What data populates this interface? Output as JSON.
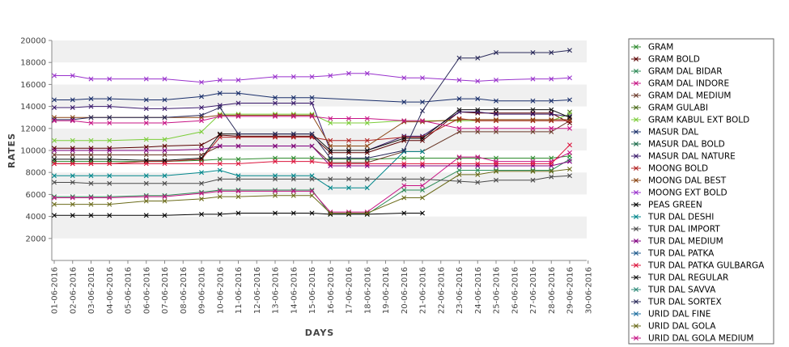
{
  "chart_data": {
    "type": "line",
    "xlabel": "DAYS",
    "ylabel": "RATES",
    "ylim": [
      0,
      20000
    ],
    "yticks": [
      2000,
      4000,
      6000,
      8000,
      10000,
      12000,
      14000,
      16000,
      18000,
      20000
    ],
    "grid": "horizontal bands",
    "legend_position": "right",
    "categories": [
      "01-06-2016",
      "02-06-2016",
      "03-06-2016",
      "04-06-2016",
      "05-06-2016",
      "06-06-2016",
      "07-06-2016",
      "08-06-2016",
      "09-06-2016",
      "10-06-2016",
      "11-06-2016",
      "12-06-2016",
      "13-06-2016",
      "14-06-2016",
      "15-06-2016",
      "16-06-2016",
      "17-06-2016",
      "18-06-2016",
      "19-06-2016",
      "20-06-2016",
      "21-06-2016",
      "22-06-2016",
      "23-06-2016",
      "24-06-2016",
      "25-06-2016",
      "26-06-2016",
      "27-06-2016",
      "28-06-2016",
      "29-06-2016",
      "30-06-2016"
    ],
    "series": [
      {
        "name": "GRAM",
        "color": "#2e8b2e",
        "values": [
          9000,
          9000,
          9000,
          9000,
          null,
          9000,
          9000,
          null,
          9100,
          9200,
          9200,
          null,
          9300,
          9300,
          9300,
          9200,
          9200,
          9200,
          null,
          9300,
          9300,
          null,
          9300,
          9300,
          9300,
          null,
          9300,
          9300,
          9500,
          null
        ]
      },
      {
        "name": "GRAM BOLD",
        "color": "#5a0000",
        "values": [
          10200,
          10200,
          10200,
          10200,
          null,
          10300,
          10400,
          null,
          10500,
          11400,
          11300,
          null,
          11300,
          11300,
          11300,
          9800,
          9800,
          9800,
          null,
          10900,
          10900,
          null,
          13500,
          13400,
          13400,
          null,
          13400,
          13400,
          12500,
          null
        ]
      },
      {
        "name": "GRAM DAL BIDAR",
        "color": "#2e8b57",
        "values": [
          5800,
          5800,
          5800,
          5800,
          null,
          5900,
          5900,
          null,
          6200,
          6400,
          6400,
          null,
          6400,
          6400,
          6400,
          4200,
          4200,
          4200,
          null,
          6400,
          6400,
          null,
          8200,
          8200,
          8200,
          null,
          8200,
          8200,
          9200,
          null
        ]
      },
      {
        "name": "GRAM DAL INDORE",
        "color": "#c71585",
        "values": [
          5700,
          5700,
          5700,
          5700,
          null,
          5800,
          5800,
          null,
          6100,
          6300,
          6300,
          null,
          6300,
          6300,
          6300,
          4400,
          4400,
          4400,
          null,
          6800,
          6800,
          null,
          9400,
          9400,
          9000,
          null,
          9000,
          9000,
          9800,
          null
        ]
      },
      {
        "name": "GRAM DAL MEDIUM",
        "color": "#6b3a2a",
        "values": [
          9600,
          9600,
          9600,
          9600,
          null,
          9600,
          9600,
          null,
          9600,
          10400,
          10400,
          null,
          10400,
          10400,
          10400,
          8900,
          8900,
          8900,
          null,
          9900,
          9900,
          null,
          11700,
          11700,
          11700,
          null,
          11700,
          11700,
          12700,
          null
        ]
      },
      {
        "name": "GRAM GULABI",
        "color": "#4b6b1a",
        "values": [
          null,
          null,
          null,
          null,
          null,
          null,
          null,
          null,
          null,
          null,
          null,
          null,
          null,
          null,
          null,
          null,
          null,
          null,
          null,
          null,
          null,
          null,
          null,
          null,
          null,
          null,
          null,
          null,
          13500,
          null
        ]
      },
      {
        "name": "GRAM KABUL EXT BOLD",
        "color": "#7ccd3a",
        "values": [
          10900,
          10900,
          10900,
          10900,
          null,
          11000,
          11000,
          null,
          11700,
          13300,
          13300,
          null,
          13300,
          13300,
          13300,
          12500,
          12500,
          12500,
          null,
          12700,
          12700,
          null,
          12700,
          12700,
          12700,
          null,
          12700,
          12700,
          13300,
          null
        ]
      },
      {
        "name": "MASUR DAL",
        "color": "#1a2f6b",
        "values": [
          14600,
          14600,
          14700,
          14700,
          null,
          14600,
          14600,
          null,
          14900,
          15200,
          15200,
          null,
          14800,
          14800,
          14800,
          null,
          null,
          null,
          null,
          14400,
          14400,
          null,
          14700,
          14700,
          14500,
          null,
          14500,
          14500,
          14600,
          null
        ]
      },
      {
        "name": "MASUR DAL BOLD",
        "color": "#1a6b4a",
        "values": [
          null,
          null,
          null,
          null,
          null,
          null,
          null,
          null,
          null,
          null,
          null,
          null,
          null,
          null,
          null,
          null,
          null,
          null,
          null,
          null,
          null,
          null,
          null,
          null,
          null,
          null,
          null,
          null,
          null,
          null
        ]
      },
      {
        "name": "MASUR DAL NATURE",
        "color": "#3a1a6b",
        "values": [
          13900,
          13900,
          14000,
          14000,
          null,
          13800,
          13800,
          null,
          13900,
          14100,
          14300,
          null,
          14300,
          14300,
          14300,
          10000,
          10000,
          10000,
          null,
          11300,
          11300,
          null,
          13500,
          13500,
          13300,
          null,
          13300,
          13300,
          13100,
          null
        ]
      },
      {
        "name": "MOONG BOLD",
        "color": "#b22222",
        "values": [
          8800,
          8800,
          8800,
          8800,
          null,
          9000,
          9000,
          null,
          9200,
          11200,
          11200,
          null,
          11200,
          11200,
          11200,
          10900,
          10900,
          10900,
          null,
          11200,
          11200,
          null,
          12900,
          12700,
          12700,
          null,
          12700,
          12700,
          12700,
          null
        ]
      },
      {
        "name": "MOONG DAL BEST",
        "color": "#8b4513",
        "values": [
          13000,
          13000,
          13000,
          13000,
          null,
          13000,
          13000,
          null,
          13000,
          13200,
          13200,
          null,
          13200,
          13200,
          13200,
          10400,
          10400,
          10400,
          null,
          12600,
          12600,
          null,
          12800,
          12800,
          12800,
          null,
          12800,
          12800,
          12800,
          null
        ]
      },
      {
        "name": "MOONG EXT BOLD",
        "color": "#9932cc",
        "values": [
          16800,
          16800,
          16500,
          16500,
          null,
          16500,
          16500,
          null,
          16200,
          16400,
          16400,
          null,
          16700,
          16700,
          16700,
          16800,
          17000,
          17000,
          null,
          16600,
          16600,
          null,
          16400,
          16300,
          16400,
          null,
          16500,
          16500,
          16600,
          null
        ]
      },
      {
        "name": "PEAS GREEN",
        "color": "#000000",
        "values": [
          4100,
          4100,
          4100,
          4100,
          null,
          4100,
          4100,
          null,
          4200,
          4200,
          4300,
          null,
          4300,
          4300,
          4300,
          4200,
          4200,
          4200,
          null,
          4300,
          4300,
          null,
          null,
          null,
          null,
          null,
          null,
          null,
          null,
          null
        ]
      },
      {
        "name": "TUR DAL DESHI",
        "color": "#00868b",
        "values": [
          7700,
          7700,
          7700,
          7700,
          null,
          7700,
          7700,
          null,
          8000,
          8200,
          7700,
          null,
          7700,
          7700,
          7700,
          6600,
          6600,
          6600,
          null,
          9900,
          9900,
          null,
          null,
          null,
          null,
          null,
          null,
          null,
          null,
          null
        ]
      },
      {
        "name": "TUR DAL IMPORT",
        "color": "#4a4a4a",
        "values": [
          7100,
          7100,
          7000,
          7000,
          null,
          7000,
          7000,
          null,
          7000,
          7400,
          7400,
          null,
          7400,
          7400,
          7400,
          7400,
          7400,
          7400,
          null,
          7400,
          7400,
          null,
          7200,
          7100,
          7300,
          null,
          7300,
          7600,
          7700,
          null
        ]
      },
      {
        "name": "TUR DAL MEDIUM",
        "color": "#800080",
        "values": [
          10000,
          10000,
          10000,
          10000,
          null,
          10000,
          10000,
          null,
          10100,
          10400,
          10400,
          null,
          10400,
          10400,
          10400,
          8600,
          8600,
          8600,
          null,
          8600,
          8600,
          null,
          8600,
          8600,
          8600,
          null,
          8600,
          8600,
          9000,
          null
        ]
      },
      {
        "name": "TUR DAL PATKA",
        "color": "#1e5a8c",
        "values": [
          null,
          null,
          null,
          null,
          null,
          null,
          null,
          null,
          null,
          null,
          null,
          null,
          null,
          null,
          null,
          null,
          null,
          null,
          null,
          null,
          null,
          null,
          null,
          null,
          null,
          null,
          null,
          null,
          null,
          null
        ]
      },
      {
        "name": "TUR DAL PATKA GULBARGA",
        "color": "#dc143c",
        "values": [
          8800,
          8800,
          8800,
          8800,
          null,
          8800,
          8800,
          null,
          8800,
          8800,
          8800,
          null,
          9000,
          9000,
          9000,
          8800,
          8800,
          8800,
          null,
          8800,
          8800,
          null,
          8800,
          8800,
          8800,
          null,
          8800,
          8800,
          10500,
          null
        ]
      },
      {
        "name": "TUR DAL REGULAR",
        "color": "#111111",
        "values": [
          9200,
          9200,
          9200,
          9200,
          null,
          9100,
          9100,
          null,
          9300,
          11500,
          11500,
          null,
          11500,
          11500,
          11500,
          10000,
          10000,
          10000,
          null,
          11100,
          11100,
          null,
          13700,
          13700,
          13700,
          null,
          13700,
          13700,
          13000,
          null
        ]
      },
      {
        "name": "TUR DAL SAVVA",
        "color": "#2e8b7a",
        "values": [
          null,
          null,
          null,
          null,
          null,
          null,
          null,
          null,
          null,
          null,
          null,
          null,
          null,
          null,
          null,
          null,
          null,
          null,
          null,
          null,
          null,
          null,
          null,
          null,
          null,
          null,
          null,
          null,
          null,
          null
        ]
      },
      {
        "name": "TUR DAL SORTEX",
        "color": "#2a2a5a",
        "values": [
          12800,
          12800,
          13000,
          13000,
          null,
          13000,
          13000,
          null,
          13200,
          13900,
          11500,
          null,
          11500,
          11500,
          11500,
          9300,
          9300,
          9300,
          null,
          10000,
          13600,
          null,
          18400,
          18400,
          18900,
          null,
          18900,
          18900,
          19100,
          null
        ]
      },
      {
        "name": "URID DAL FINE",
        "color": "#1e6fa0",
        "values": [
          null,
          null,
          null,
          null,
          null,
          null,
          null,
          null,
          null,
          null,
          null,
          null,
          null,
          null,
          null,
          null,
          null,
          null,
          null,
          null,
          null,
          null,
          null,
          null,
          null,
          null,
          null,
          null,
          null,
          null
        ]
      },
      {
        "name": "URID DAL GOLA",
        "color": "#6b6b1a",
        "values": [
          5100,
          5100,
          5100,
          5100,
          null,
          5400,
          5400,
          null,
          5600,
          5800,
          5800,
          null,
          5900,
          5900,
          5900,
          4300,
          4300,
          4300,
          null,
          5700,
          5700,
          null,
          7800,
          7800,
          8100,
          null,
          8100,
          8100,
          8300,
          null
        ]
      },
      {
        "name": "URID DAL GOLA MEDIUM",
        "color": "#c71585",
        "values": [
          12700,
          12700,
          12500,
          12500,
          null,
          12500,
          12500,
          null,
          12700,
          13100,
          13100,
          null,
          13100,
          13100,
          13100,
          12900,
          12900,
          12900,
          null,
          12700,
          12700,
          null,
          12000,
          12000,
          12000,
          null,
          12000,
          12000,
          12000,
          null
        ]
      }
    ]
  }
}
